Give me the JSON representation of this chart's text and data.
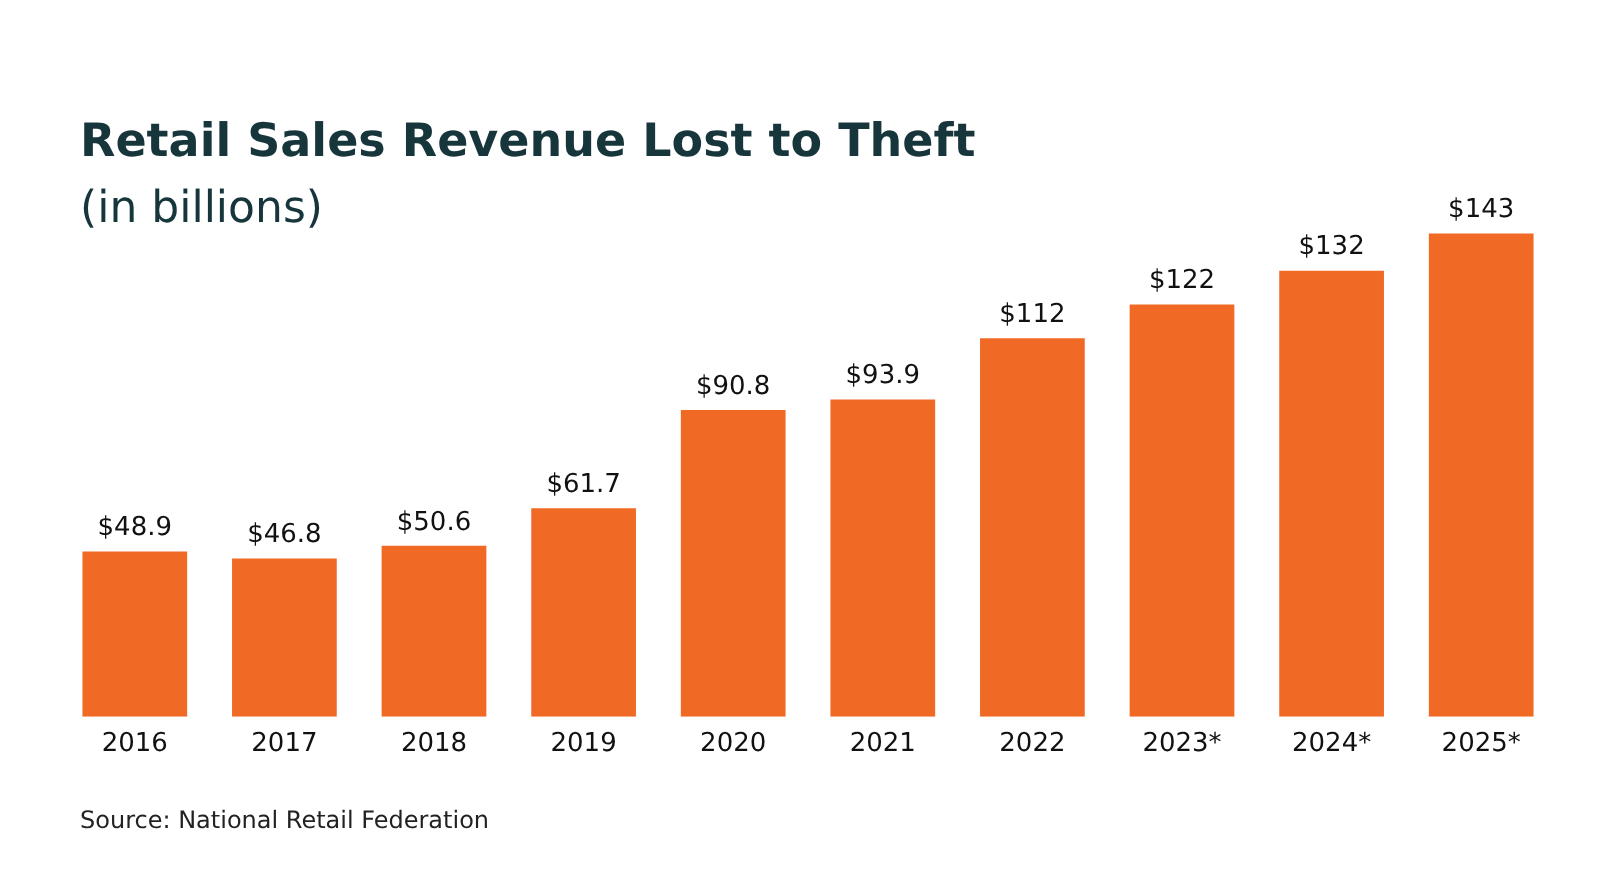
{
  "chart_data": {
    "type": "bar",
    "title": "Retail Sales Revenue Lost to Theft",
    "subtitle": "(in billions)",
    "annotations": [
      "Source: National Retail Federation"
    ],
    "categories": [
      "2016",
      "2017",
      "2018",
      "2019",
      "2020",
      "2021",
      "2022",
      "2023*",
      "2024*",
      "2025*"
    ],
    "values": [
      48.9,
      46.8,
      50.6,
      61.7,
      90.8,
      93.9,
      112,
      122,
      132,
      143
    ],
    "value_labels": [
      "$48.9",
      "$46.8",
      "$50.6",
      "$61.7",
      "$90.8",
      "$93.9",
      "$112",
      "$122",
      "$132",
      "$143"
    ],
    "color": "#f06a25",
    "relative": false,
    "grid": false,
    "legend": false
  }
}
